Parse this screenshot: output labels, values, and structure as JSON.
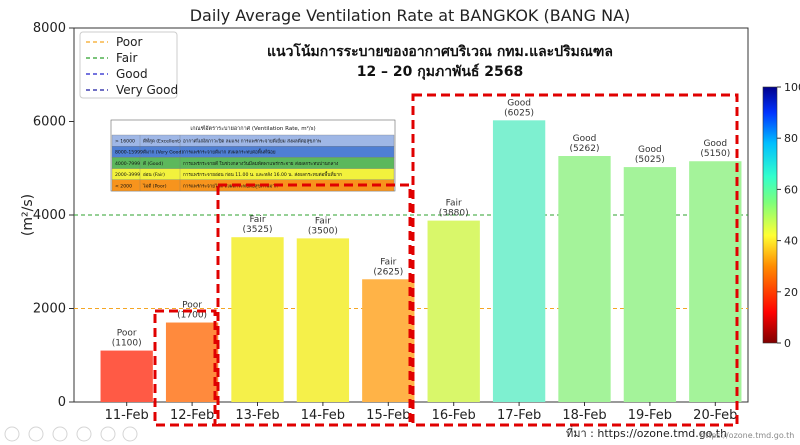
{
  "chart_data": {
    "type": "bar",
    "title": "Daily Average Ventilation Rate at BANGKOK (BANG NA)",
    "subtitle_line1": "แนวโน้มการระบายของอากาศบริเวณ กทม.และปริมณฑล",
    "subtitle_line2": "12 – 20 กุมภาพันธ์ 2568",
    "ylabel": "(m²/s)",
    "ylim": [
      0,
      8000
    ],
    "yticks": [
      0,
      2000,
      4000,
      6000,
      8000
    ],
    "categories": [
      "11-Feb",
      "12-Feb",
      "13-Feb",
      "14-Feb",
      "15-Feb",
      "16-Feb",
      "17-Feb",
      "18-Feb",
      "19-Feb",
      "20-Feb"
    ],
    "values": [
      1100,
      1700,
      3525,
      3500,
      2625,
      3880,
      6025,
      5262,
      5025,
      5150
    ],
    "bar_labels": [
      "Poor",
      "Poor",
      "Fair",
      "Fair",
      "Fair",
      "Fair",
      "Good",
      "Good",
      "Good",
      "Good"
    ],
    "value_labels": [
      "(1100)",
      "(1700)",
      "(3525)",
      "(3500)",
      "(2625)",
      "(3880)",
      "(6025)",
      "(5262)",
      "(5025)",
      "(5150)"
    ],
    "bar_colors": [
      "#ff5a45",
      "#ff8a3d",
      "#f5f04a",
      "#f5f04a",
      "#ffb347",
      "#d9f76a",
      "#7ef0d0",
      "#a4f39a",
      "#a4f39a",
      "#a4f39a"
    ],
    "reference_lines": [
      {
        "name": "Poor",
        "value": 2000,
        "color": "#f5a623"
      },
      {
        "name": "Fair",
        "value": 4000,
        "color": "#2ca02c"
      }
    ],
    "legend": [
      {
        "name": "Poor",
        "color": "#f5a623"
      },
      {
        "name": "Fair",
        "color": "#2ca02c"
      },
      {
        "name": "Good",
        "color": "#2222cc"
      },
      {
        "name": "Very Good",
        "color": "#1a1aa0"
      }
    ],
    "legend_position": "top-left",
    "colorbar": {
      "ticks": [
        0,
        20,
        40,
        60,
        80,
        100
      ],
      "labels": [
        "0",
        "20",
        "40",
        "60",
        "80",
        "100"
      ]
    },
    "criteria_table": {
      "header": "เกณฑ์อัตราระบายอากาศ (Ventilation Rate, m²/s)",
      "rows": [
        {
          "range": "> 16000",
          "level": "ดีที่สุด (Excellent)",
          "desc": "อากาศไม่มีสภาวะปิด ลมแรง การแพร่กระจายดีเยี่ยม ส่งผลดีต่อสุขภาพ",
          "color": "#9fb7e6"
        },
        {
          "range": "8000-15999",
          "level": "ดีมาก (Very Good)",
          "desc": "การแพร่กระจายดีมาก ส่งผลกระทบต่อพื้นที่น้อย",
          "color": "#4f7fd4"
        },
        {
          "range": "4000-7999",
          "level": "ดี (Good)",
          "desc": "การแพร่กระจายดี ในช่วงกลางวันมีลมพัดพาแพร่กระจาย ส่งผลกระทบปานกลาง",
          "color": "#5cb85c"
        },
        {
          "range": "2000-3999",
          "level": "อ่อน (Fair)",
          "desc": "การแพร่กระจายอ่อน ก่อน 11.00 น. และหลัง 16.00 น. ส่งผลกระทบต่อพื้นที่มาก",
          "color": "#f2f23d"
        },
        {
          "range": "< 2000",
          "level": "ไม่ดี (Poor)",
          "desc": "การแพร่กระจายไม่ดี ส่งผลกระทบต่อสุขภาพมาก",
          "color": "#f7941d"
        }
      ]
    },
    "grid": false
  },
  "source_text": "ที่มา : https://ozone.tmd.go.th",
  "watermark_text": "https://ozone.tmd.go.th"
}
